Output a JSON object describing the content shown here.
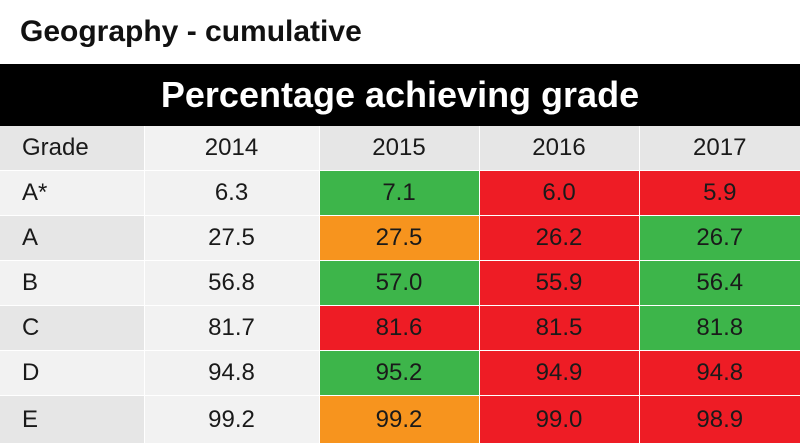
{
  "page_title": "Geography - cumulative",
  "banner_title": "Percentage achieving grade",
  "colors": {
    "green": "#3db54a",
    "red": "#ee1c25",
    "orange": "#f7941e",
    "banner_bg": "#000000",
    "header_bg": "#e6e6e6"
  },
  "chart_data": {
    "type": "table",
    "title": "Percentage achieving grade",
    "columns": [
      "Grade",
      "2014",
      "2015",
      "2016",
      "2017"
    ],
    "rows": [
      {
        "grade": "A*",
        "values": [
          "6.3",
          "7.1",
          "6.0",
          "5.9"
        ],
        "highlight": [
          "none",
          "green",
          "red",
          "red"
        ]
      },
      {
        "grade": "A",
        "values": [
          "27.5",
          "27.5",
          "26.2",
          "26.7"
        ],
        "highlight": [
          "none",
          "orange",
          "red",
          "green"
        ]
      },
      {
        "grade": "B",
        "values": [
          "56.8",
          "57.0",
          "55.9",
          "56.4"
        ],
        "highlight": [
          "none",
          "green",
          "red",
          "green"
        ]
      },
      {
        "grade": "C",
        "values": [
          "81.7",
          "81.6",
          "81.5",
          "81.8"
        ],
        "highlight": [
          "none",
          "red",
          "red",
          "green"
        ]
      },
      {
        "grade": "D",
        "values": [
          "94.8",
          "95.2",
          "94.9",
          "94.8"
        ],
        "highlight": [
          "none",
          "green",
          "red",
          "red"
        ]
      },
      {
        "grade": "E",
        "values": [
          "99.2",
          "99.2",
          "99.0",
          "98.9"
        ],
        "highlight": [
          "none",
          "orange",
          "red",
          "red"
        ]
      }
    ]
  }
}
